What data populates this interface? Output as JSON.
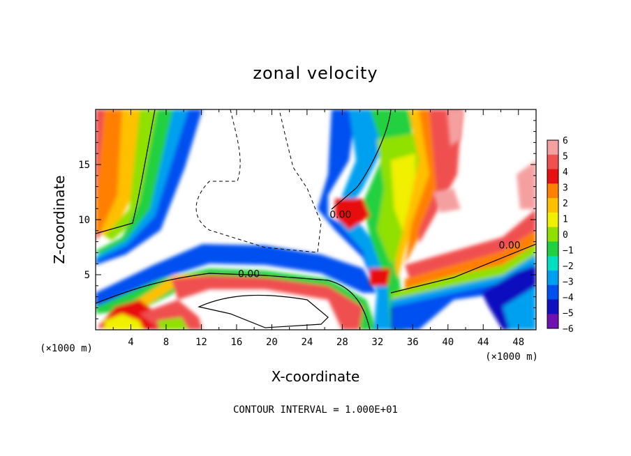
{
  "chart_data": {
    "type": "heatmap",
    "title": "zonal velocity",
    "xlabel": "X-coordinate",
    "ylabel": "Z-coordinate",
    "x_unit_left": "(×1000 m)",
    "x_unit_right": "(×1000 m)",
    "xlim": [
      0,
      50
    ],
    "ylim": [
      0,
      20
    ],
    "xticks": [
      4,
      8,
      12,
      16,
      20,
      24,
      28,
      32,
      36,
      40,
      44,
      48
    ],
    "yticks": [
      5,
      10,
      15
    ],
    "colorbar": {
      "levels": [
        6,
        5,
        4,
        3,
        2,
        1,
        0,
        -1,
        -2,
        -3,
        -4,
        -5,
        -6
      ],
      "labels": [
        "6",
        "5",
        "4",
        "3",
        "2",
        "1",
        "0",
        "−1",
        "−2",
        "−3",
        "−4",
        "−5",
        "−6"
      ],
      "colors": [
        "#f5a0a0",
        "#f05050",
        "#e81010",
        "#ff8000",
        "#ffc000",
        "#f0f000",
        "#90e000",
        "#20d040",
        "#00e0c0",
        "#00a0f0",
        "#0050f0",
        "#1010c0",
        "#7010b0"
      ]
    },
    "contour_labels": [
      {
        "text": "0.00",
        "x": 17.4,
        "z": 4.9
      },
      {
        "text": "0.00",
        "x": 27.8,
        "z": 10.3
      },
      {
        "text": "0.00",
        "x": 47.0,
        "z": 7.5
      }
    ],
    "grid": false,
    "footer": "CONTOUR INTERVAL = 1.000E+01"
  }
}
